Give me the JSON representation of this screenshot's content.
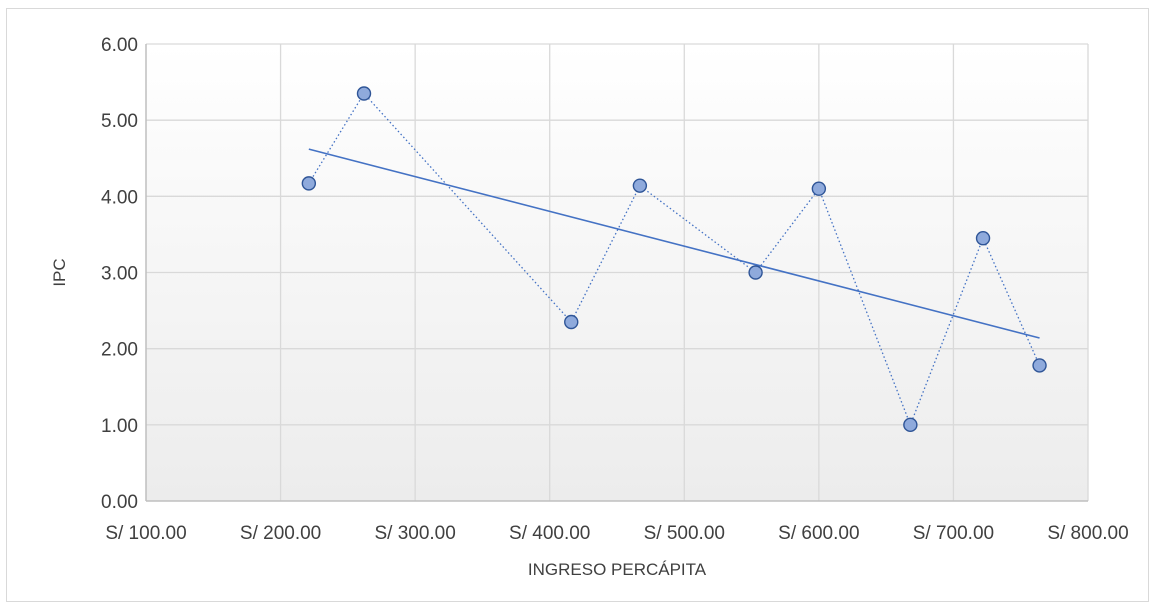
{
  "chart_data": {
    "type": "scatter",
    "title": "",
    "xlabel": "INGRESO PERCÁPITA",
    "ylabel": "IPC",
    "xlim": [
      100,
      800
    ],
    "ylim": [
      0,
      6
    ],
    "x_ticks": [
      {
        "value": 100,
        "label": "S/ 100.00"
      },
      {
        "value": 200,
        "label": "S/ 200.00"
      },
      {
        "value": 300,
        "label": "S/ 300.00"
      },
      {
        "value": 400,
        "label": "S/ 400.00"
      },
      {
        "value": 500,
        "label": "S/ 500.00"
      },
      {
        "value": 600,
        "label": "S/ 600.00"
      },
      {
        "value": 700,
        "label": "S/ 700.00"
      },
      {
        "value": 800,
        "label": "S/ 800.00"
      }
    ],
    "y_ticks": [
      {
        "value": 0,
        "label": "0.00"
      },
      {
        "value": 1,
        "label": "1.00"
      },
      {
        "value": 2,
        "label": "2.00"
      },
      {
        "value": 3,
        "label": "3.00"
      },
      {
        "value": 4,
        "label": "4.00"
      },
      {
        "value": 5,
        "label": "5.00"
      },
      {
        "value": 6,
        "label": "6.00"
      }
    ],
    "grid": true,
    "legend": "none",
    "series": [
      {
        "points": [
          {
            "x": 221,
            "y": 4.17
          },
          {
            "x": 262,
            "y": 5.35
          },
          {
            "x": 416,
            "y": 2.35
          },
          {
            "x": 467,
            "y": 4.14
          },
          {
            "x": 553,
            "y": 3.0
          },
          {
            "x": 600,
            "y": 4.1
          },
          {
            "x": 668,
            "y": 1.0
          },
          {
            "x": 722,
            "y": 3.45
          },
          {
            "x": 764,
            "y": 1.78
          }
        ],
        "line_style": "dotted",
        "color": "#4472c4",
        "marker_fill": "#8faadc"
      }
    ],
    "trendline": {
      "type": "linear",
      "color": "#4472c4",
      "start": {
        "x": 221,
        "y": 4.62
      },
      "end": {
        "x": 764,
        "y": 2.14
      }
    }
  }
}
